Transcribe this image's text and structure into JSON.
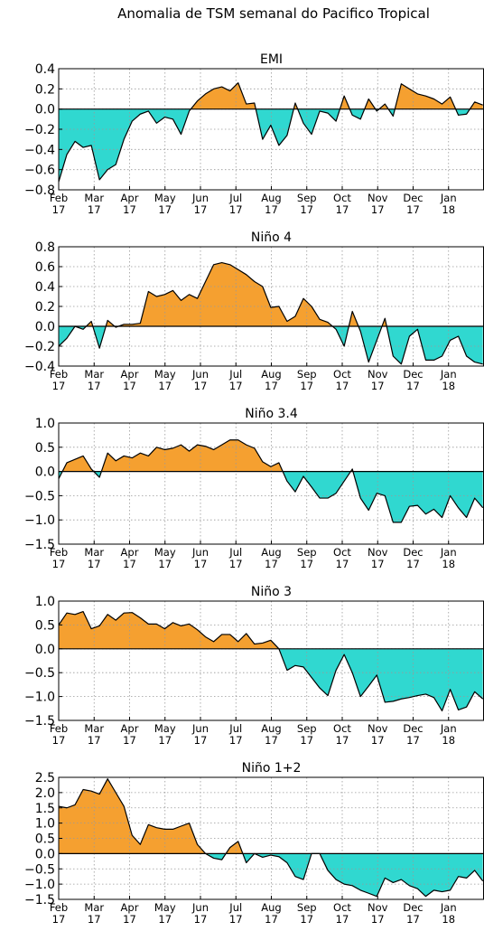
{
  "suptitle": "Anomalia de TSM semanal do Pacifico Tropical",
  "colors": {
    "positive": "#f5a030",
    "negative": "#30d8d0",
    "line": "#000000",
    "grid": "#999999"
  },
  "chart_data": [
    {
      "type": "area",
      "title": "EMI",
      "ylim": [
        -0.8,
        0.4
      ],
      "yticks": [
        -0.8,
        -0.6,
        -0.4,
        -0.2,
        0.0,
        0.2,
        0.4
      ],
      "ytick_labels": [
        "−0.8",
        "−0.6",
        "−0.4",
        "−0.2",
        "0.0",
        "0.2",
        "0.4"
      ],
      "xticks": [
        {
          "m": "Feb",
          "y": "17"
        },
        {
          "m": "Mar",
          "y": "17"
        },
        {
          "m": "Apr",
          "y": "17"
        },
        {
          "m": "May",
          "y": "17"
        },
        {
          "m": "Jun",
          "y": "17"
        },
        {
          "m": "Jul",
          "y": "17"
        },
        {
          "m": "Aug",
          "y": "17"
        },
        {
          "m": "Sep",
          "y": "17"
        },
        {
          "m": "Oct",
          "y": "17"
        },
        {
          "m": "Nov",
          "y": "17"
        },
        {
          "m": "Dec",
          "y": "17"
        },
        {
          "m": "Jan",
          "y": "18"
        }
      ],
      "x": [
        "2017-02-01",
        "2017-02-08",
        "2017-02-15",
        "2017-02-22",
        "2017-03-01",
        "2017-03-08",
        "2017-03-15",
        "2017-03-22",
        "2017-03-29",
        "2017-04-05",
        "2017-04-12",
        "2017-04-19",
        "2017-04-26",
        "2017-05-03",
        "2017-05-10",
        "2017-05-17",
        "2017-05-24",
        "2017-05-31",
        "2017-06-07",
        "2017-06-14",
        "2017-06-21",
        "2017-06-28",
        "2017-07-05",
        "2017-07-12",
        "2017-07-19",
        "2017-07-26",
        "2017-08-02",
        "2017-08-09",
        "2017-08-16",
        "2017-08-23",
        "2017-08-30",
        "2017-09-06",
        "2017-09-13",
        "2017-09-20",
        "2017-09-27",
        "2017-10-04",
        "2017-10-11",
        "2017-10-18",
        "2017-10-25",
        "2017-11-01",
        "2017-11-08",
        "2017-11-15",
        "2017-11-22",
        "2017-11-29",
        "2017-12-06",
        "2017-12-13",
        "2017-12-20",
        "2017-12-27",
        "2018-01-03",
        "2018-01-10",
        "2018-01-17",
        "2018-01-24",
        "2018-01-31"
      ],
      "values": [
        -0.72,
        -0.45,
        -0.32,
        -0.38,
        -0.36,
        -0.7,
        -0.6,
        -0.55,
        -0.3,
        -0.12,
        -0.05,
        -0.02,
        -0.14,
        -0.08,
        -0.1,
        -0.25,
        -0.02,
        0.08,
        0.15,
        0.2,
        0.22,
        0.18,
        0.26,
        0.05,
        0.06,
        -0.3,
        -0.16,
        -0.36,
        -0.26,
        0.06,
        -0.14,
        -0.25,
        -0.02,
        -0.04,
        -0.12,
        0.13,
        -0.06,
        -0.1,
        0.1,
        -0.02,
        0.05,
        -0.07,
        0.25,
        0.2,
        0.15,
        0.13,
        0.1,
        0.05,
        0.12,
        -0.06,
        -0.05,
        0.07,
        0.04
      ]
    },
    {
      "type": "area",
      "title": "Niño 4",
      "ylim": [
        -0.4,
        0.8
      ],
      "yticks": [
        -0.4,
        -0.2,
        0.0,
        0.2,
        0.4,
        0.6,
        0.8
      ],
      "ytick_labels": [
        "−0.4",
        "−0.2",
        "0.0",
        "0.2",
        "0.4",
        "0.6",
        "0.8"
      ],
      "xticks": [
        {
          "m": "Feb",
          "y": "17"
        },
        {
          "m": "Mar",
          "y": "17"
        },
        {
          "m": "Apr",
          "y": "17"
        },
        {
          "m": "May",
          "y": "17"
        },
        {
          "m": "Jun",
          "y": "17"
        },
        {
          "m": "Jul",
          "y": "17"
        },
        {
          "m": "Aug",
          "y": "17"
        },
        {
          "m": "Sep",
          "y": "17"
        },
        {
          "m": "Oct",
          "y": "17"
        },
        {
          "m": "Nov",
          "y": "17"
        },
        {
          "m": "Dec",
          "y": "17"
        },
        {
          "m": "Jan",
          "y": "18"
        }
      ],
      "x": [
        "2017-02-01",
        "2017-02-08",
        "2017-02-15",
        "2017-02-22",
        "2017-03-01",
        "2017-03-08",
        "2017-03-15",
        "2017-03-22",
        "2017-03-29",
        "2017-04-05",
        "2017-04-12",
        "2017-04-19",
        "2017-04-26",
        "2017-05-03",
        "2017-05-10",
        "2017-05-17",
        "2017-05-24",
        "2017-05-31",
        "2017-06-07",
        "2017-06-14",
        "2017-06-21",
        "2017-06-28",
        "2017-07-05",
        "2017-07-12",
        "2017-07-19",
        "2017-07-26",
        "2017-08-02",
        "2017-08-09",
        "2017-08-16",
        "2017-08-23",
        "2017-08-30",
        "2017-09-06",
        "2017-09-13",
        "2017-09-20",
        "2017-09-27",
        "2017-10-04",
        "2017-10-11",
        "2017-10-18",
        "2017-10-25",
        "2017-11-01",
        "2017-11-08",
        "2017-11-15",
        "2017-11-22",
        "2017-11-29",
        "2017-12-06",
        "2017-12-13",
        "2017-12-20",
        "2017-12-27",
        "2018-01-03",
        "2018-01-10",
        "2018-01-17",
        "2018-01-24",
        "2018-01-31"
      ],
      "values": [
        -0.2,
        -0.12,
        0.0,
        -0.03,
        0.05,
        -0.22,
        0.06,
        -0.01,
        0.02,
        0.02,
        0.03,
        0.35,
        0.3,
        0.32,
        0.36,
        0.26,
        0.32,
        0.28,
        0.45,
        0.62,
        0.64,
        0.62,
        0.57,
        0.52,
        0.45,
        0.4,
        0.19,
        0.2,
        0.05,
        0.1,
        0.28,
        0.2,
        0.07,
        0.04,
        -0.03,
        -0.2,
        0.15,
        -0.05,
        -0.36,
        -0.14,
        0.08,
        -0.3,
        -0.38,
        -0.1,
        -0.03,
        -0.34,
        -0.34,
        -0.3,
        -0.14,
        -0.1,
        -0.3,
        -0.36,
        -0.38
      ]
    },
    {
      "type": "area",
      "title": "Niño 3.4",
      "ylim": [
        -1.5,
        1.0
      ],
      "yticks": [
        -1.5,
        -1.0,
        -0.5,
        0.0,
        0.5,
        1.0
      ],
      "ytick_labels": [
        "−1.5",
        "−1.0",
        "−0.5",
        "0.0",
        "0.5",
        "1.0"
      ],
      "xticks": [
        {
          "m": "Feb",
          "y": "17"
        },
        {
          "m": "Mar",
          "y": "17"
        },
        {
          "m": "Apr",
          "y": "17"
        },
        {
          "m": "May",
          "y": "17"
        },
        {
          "m": "Jun",
          "y": "17"
        },
        {
          "m": "Jul",
          "y": "17"
        },
        {
          "m": "Aug",
          "y": "17"
        },
        {
          "m": "Sep",
          "y": "17"
        },
        {
          "m": "Oct",
          "y": "17"
        },
        {
          "m": "Nov",
          "y": "17"
        },
        {
          "m": "Dec",
          "y": "17"
        },
        {
          "m": "Jan",
          "y": "18"
        }
      ],
      "x": [
        "2017-02-01",
        "2017-02-08",
        "2017-02-15",
        "2017-02-22",
        "2017-03-01",
        "2017-03-08",
        "2017-03-15",
        "2017-03-22",
        "2017-03-29",
        "2017-04-05",
        "2017-04-12",
        "2017-04-19",
        "2017-04-26",
        "2017-05-03",
        "2017-05-10",
        "2017-05-17",
        "2017-05-24",
        "2017-05-31",
        "2017-06-07",
        "2017-06-14",
        "2017-06-21",
        "2017-06-28",
        "2017-07-05",
        "2017-07-12",
        "2017-07-19",
        "2017-07-26",
        "2017-08-02",
        "2017-08-09",
        "2017-08-16",
        "2017-08-23",
        "2017-08-30",
        "2017-09-06",
        "2017-09-13",
        "2017-09-20",
        "2017-09-27",
        "2017-10-04",
        "2017-10-11",
        "2017-10-18",
        "2017-10-25",
        "2017-11-01",
        "2017-11-08",
        "2017-11-15",
        "2017-11-22",
        "2017-11-29",
        "2017-12-06",
        "2017-12-13",
        "2017-12-20",
        "2017-12-27",
        "2018-01-03",
        "2018-01-10",
        "2018-01-17",
        "2018-01-24",
        "2018-01-31"
      ],
      "values": [
        -0.15,
        0.18,
        0.25,
        0.32,
        0.05,
        -0.12,
        0.38,
        0.22,
        0.32,
        0.28,
        0.38,
        0.32,
        0.5,
        0.45,
        0.48,
        0.55,
        0.42,
        0.55,
        0.52,
        0.45,
        0.55,
        0.65,
        0.65,
        0.55,
        0.48,
        0.2,
        0.1,
        0.18,
        -0.2,
        -0.42,
        -0.1,
        -0.32,
        -0.55,
        -0.55,
        -0.45,
        -0.2,
        0.05,
        -0.55,
        -0.8,
        -0.45,
        -0.5,
        -1.05,
        -1.05,
        -0.72,
        -0.7,
        -0.88,
        -0.78,
        -0.95,
        -0.5,
        -0.75,
        -0.95,
        -0.55,
        -0.75
      ]
    },
    {
      "type": "area",
      "title": "Niño 3",
      "ylim": [
        -1.5,
        1.0
      ],
      "yticks": [
        -1.5,
        -1.0,
        -0.5,
        0.0,
        0.5,
        1.0
      ],
      "ytick_labels": [
        "−1.5",
        "−1.0",
        "−0.5",
        "0.0",
        "0.5",
        "1.0"
      ],
      "xticks": [
        {
          "m": "Feb",
          "y": "17"
        },
        {
          "m": "Mar",
          "y": "17"
        },
        {
          "m": "Apr",
          "y": "17"
        },
        {
          "m": "May",
          "y": "17"
        },
        {
          "m": "Jun",
          "y": "17"
        },
        {
          "m": "Jul",
          "y": "17"
        },
        {
          "m": "Aug",
          "y": "17"
        },
        {
          "m": "Sep",
          "y": "17"
        },
        {
          "m": "Oct",
          "y": "17"
        },
        {
          "m": "Nov",
          "y": "17"
        },
        {
          "m": "Dec",
          "y": "17"
        },
        {
          "m": "Jan",
          "y": "18"
        }
      ],
      "x": [
        "2017-02-01",
        "2017-02-08",
        "2017-02-15",
        "2017-02-22",
        "2017-03-01",
        "2017-03-08",
        "2017-03-15",
        "2017-03-22",
        "2017-03-29",
        "2017-04-05",
        "2017-04-12",
        "2017-04-19",
        "2017-04-26",
        "2017-05-03",
        "2017-05-10",
        "2017-05-17",
        "2017-05-24",
        "2017-05-31",
        "2017-06-07",
        "2017-06-14",
        "2017-06-21",
        "2017-06-28",
        "2017-07-05",
        "2017-07-12",
        "2017-07-19",
        "2017-07-26",
        "2017-08-02",
        "2017-08-09",
        "2017-08-16",
        "2017-08-23",
        "2017-08-30",
        "2017-09-06",
        "2017-09-13",
        "2017-09-20",
        "2017-09-27",
        "2017-10-04",
        "2017-10-11",
        "2017-10-18",
        "2017-10-25",
        "2017-11-01",
        "2017-11-08",
        "2017-11-15",
        "2017-11-22",
        "2017-11-29",
        "2017-12-06",
        "2017-12-13",
        "2017-12-20",
        "2017-12-27",
        "2018-01-03",
        "2018-01-10",
        "2018-01-17",
        "2018-01-24",
        "2018-01-31"
      ],
      "values": [
        0.5,
        0.75,
        0.72,
        0.78,
        0.42,
        0.48,
        0.72,
        0.6,
        0.75,
        0.76,
        0.65,
        0.52,
        0.52,
        0.42,
        0.55,
        0.48,
        0.52,
        0.4,
        0.25,
        0.15,
        0.3,
        0.3,
        0.15,
        0.32,
        0.1,
        0.12,
        0.18,
        0.0,
        -0.45,
        -0.35,
        -0.38,
        -0.6,
        -0.82,
        -0.98,
        -0.45,
        -0.12,
        -0.5,
        -1.0,
        -0.78,
        -0.55,
        -1.12,
        -1.1,
        -1.05,
        -1.02,
        -0.98,
        -0.95,
        -1.02,
        -1.3,
        -0.85,
        -1.28,
        -1.22,
        -0.9,
        -1.05
      ]
    },
    {
      "type": "area",
      "title": "Niño 1+2",
      "ylim": [
        -1.5,
        2.5
      ],
      "yticks": [
        -1.5,
        -1.0,
        -0.5,
        0.0,
        0.5,
        1.0,
        1.5,
        2.0,
        2.5
      ],
      "ytick_labels": [
        "−1.5",
        "−1.0",
        "−0.5",
        "0.0",
        "0.5",
        "1.0",
        "1.5",
        "2.0",
        "2.5"
      ],
      "xticks": [
        {
          "m": "Feb",
          "y": "17"
        },
        {
          "m": "Mar",
          "y": "17"
        },
        {
          "m": "Apr",
          "y": "17"
        },
        {
          "m": "May",
          "y": "17"
        },
        {
          "m": "Jun",
          "y": "17"
        },
        {
          "m": "Jul",
          "y": "17"
        },
        {
          "m": "Aug",
          "y": "17"
        },
        {
          "m": "Sep",
          "y": "17"
        },
        {
          "m": "Oct",
          "y": "17"
        },
        {
          "m": "Nov",
          "y": "17"
        },
        {
          "m": "Dec",
          "y": "17"
        },
        {
          "m": "Jan",
          "y": "18"
        }
      ],
      "x": [
        "2017-02-01",
        "2017-02-08",
        "2017-02-15",
        "2017-02-22",
        "2017-03-01",
        "2017-03-08",
        "2017-03-15",
        "2017-03-22",
        "2017-03-29",
        "2017-04-05",
        "2017-04-12",
        "2017-04-19",
        "2017-04-26",
        "2017-05-03",
        "2017-05-10",
        "2017-05-17",
        "2017-05-24",
        "2017-05-31",
        "2017-06-07",
        "2017-06-14",
        "2017-06-21",
        "2017-06-28",
        "2017-07-05",
        "2017-07-12",
        "2017-07-19",
        "2017-07-26",
        "2017-08-02",
        "2017-08-09",
        "2017-08-16",
        "2017-08-23",
        "2017-08-30",
        "2017-09-06",
        "2017-09-13",
        "2017-09-20",
        "2017-09-27",
        "2017-10-04",
        "2017-10-11",
        "2017-10-18",
        "2017-10-25",
        "2017-11-01",
        "2017-11-08",
        "2017-11-15",
        "2017-11-22",
        "2017-11-29",
        "2017-12-06",
        "2017-12-13",
        "2017-12-20",
        "2017-12-27",
        "2018-01-03",
        "2018-01-10",
        "2018-01-17",
        "2018-01-24",
        "2018-01-31"
      ],
      "values": [
        1.55,
        1.5,
        1.6,
        2.1,
        2.05,
        1.95,
        2.45,
        2.0,
        1.55,
        0.6,
        0.3,
        0.95,
        0.85,
        0.8,
        0.8,
        0.9,
        1.0,
        0.3,
        0.0,
        -0.15,
        -0.2,
        0.2,
        0.4,
        -0.3,
        0.0,
        -0.12,
        -0.05,
        -0.1,
        -0.3,
        -0.75,
        -0.85,
        0.0,
        0.0,
        -0.55,
        -0.85,
        -1.0,
        -1.05,
        -1.2,
        -1.3,
        -1.4,
        -0.8,
        -0.95,
        -0.85,
        -1.05,
        -1.15,
        -1.4,
        -1.2,
        -1.25,
        -1.2,
        -0.75,
        -0.8,
        -0.55,
        -0.9
      ]
    }
  ]
}
